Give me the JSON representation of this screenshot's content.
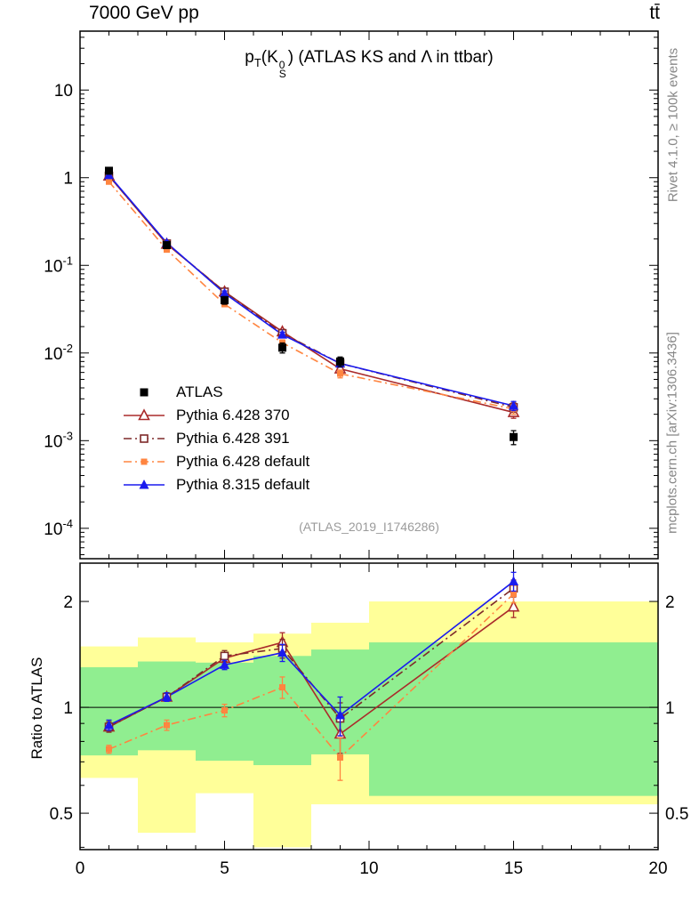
{
  "header": {
    "left": "7000 GeV pp",
    "right": "tt̄"
  },
  "title": {
    "p": "p",
    "sub": "T",
    "k": "(K",
    "sup": "0",
    "ssub": "S",
    "rest": ") (ATLAS KS and Λ in ttbar)"
  },
  "side_labels": {
    "rivet": "Rivet 4.1.0, ≥ 100k events",
    "mcplots": "mcplots.cern.ch [arXiv:1306.3436]"
  },
  "watermark": "(ATLAS_2019_I1746286)",
  "colors": {
    "yellow_band": "#ffff99",
    "green_band": "#90ee90",
    "atlas": "#000000",
    "p370": "#aa2b2b",
    "p391": "#7e2a2a",
    "p6def": "#ff8540",
    "p8def": "#1a1aee"
  },
  "chart_data": {
    "type": "line",
    "title": "pT(K0S) (ATLAS KS and Lambda in ttbar)",
    "x": [
      1,
      3,
      5,
      7,
      9,
      15
    ],
    "x_range": [
      0,
      20
    ],
    "x_ticks": [
      0,
      5,
      10,
      15,
      20
    ],
    "top_panel": {
      "y_scale": "log",
      "y_range": [
        4.5e-05,
        47
      ],
      "y_ticks": [
        {
          "value": 10,
          "label": "10"
        },
        {
          "value": 1,
          "label": "1"
        },
        {
          "value": 0.1,
          "label": "10^-1"
        },
        {
          "value": 0.01,
          "label": "10^-2"
        },
        {
          "value": 0.001,
          "label": "10^-3"
        },
        {
          "value": 0.0001,
          "label": "10^-4"
        }
      ],
      "series": [
        {
          "name": "ATLAS",
          "key": "atlas",
          "marker": "square-filled",
          "line": "none",
          "values": [
            1.2,
            0.17,
            0.04,
            0.0115,
            0.008,
            0.0011
          ],
          "errors": [
            0.08,
            0.012,
            0.004,
            0.0015,
            0.001,
            0.0002
          ]
        },
        {
          "name": "Pythia 6.428 370",
          "key": "p370",
          "marker": "triangle-open",
          "line": "solid",
          "values": [
            1.05,
            0.175,
            0.05,
            0.0175,
            0.0066,
            0.0021
          ],
          "errors": [
            0.04,
            0.008,
            0.003,
            0.0012,
            0.0007,
            0.0003
          ]
        },
        {
          "name": "Pythia 6.428 391",
          "key": "p391",
          "marker": "square-open",
          "line": "dashdot",
          "values": [
            1.05,
            0.177,
            0.05,
            0.0168,
            0.0076,
            0.0024
          ],
          "errors": [
            0.04,
            0.008,
            0.003,
            0.0012,
            0.0007,
            0.0003
          ]
        },
        {
          "name": "Pythia 6.428 default",
          "key": "p6def",
          "marker": "square-filled-small",
          "line": "dashdot",
          "values": [
            0.9,
            0.151,
            0.036,
            0.0131,
            0.0058,
            0.0023
          ],
          "errors": [
            0.04,
            0.007,
            0.002,
            0.001,
            0.0006,
            0.0003
          ]
        },
        {
          "name": "Pythia 8.315 default",
          "key": "p8def",
          "marker": "triangle-filled",
          "line": "solid",
          "values": [
            1.07,
            0.181,
            0.048,
            0.0162,
            0.0076,
            0.0025
          ],
          "errors": [
            0.04,
            0.008,
            0.003,
            0.0011,
            0.0007,
            0.0003
          ]
        }
      ]
    },
    "ratio_panel": {
      "y_label": "Ratio to ATLAS",
      "y_scale": "log",
      "y_range": [
        0.394,
        2.57
      ],
      "y_ticks": [
        {
          "value": 0.5,
          "label": "0.5"
        },
        {
          "value": 1,
          "label": "1"
        },
        {
          "value": 2,
          "label": "2"
        }
      ],
      "reference_line": 1,
      "band_bins": [
        [
          0,
          2
        ],
        [
          2,
          4
        ],
        [
          4,
          6
        ],
        [
          6,
          8
        ],
        [
          8,
          10
        ],
        [
          10,
          20
        ]
      ],
      "yellow_band": [
        [
          0.63,
          1.49
        ],
        [
          0.44,
          1.58
        ],
        [
          0.57,
          1.53
        ],
        [
          0.4,
          1.62
        ],
        [
          0.53,
          1.74
        ],
        [
          0.53,
          2.0
        ]
      ],
      "green_band": [
        [
          0.73,
          1.3
        ],
        [
          0.755,
          1.35
        ],
        [
          0.705,
          1.34
        ],
        [
          0.685,
          1.4
        ],
        [
          0.735,
          1.46
        ],
        [
          0.56,
          1.53
        ]
      ],
      "series": [
        {
          "name": "Pythia 6.428 370",
          "key": "p370",
          "values": [
            0.88,
            1.07,
            1.38,
            1.53,
            0.84,
            1.93
          ],
          "errors": [
            0.03,
            0.03,
            0.05,
            0.1,
            0.1,
            0.13
          ]
        },
        {
          "name": "Pythia 6.428 391",
          "key": "p391",
          "values": [
            0.88,
            1.07,
            1.4,
            1.47,
            0.93,
            2.18
          ],
          "errors": [
            0.03,
            0.03,
            0.05,
            0.09,
            0.1,
            0.12
          ]
        },
        {
          "name": "Pythia 6.428 default",
          "key": "p6def",
          "values": [
            0.76,
            0.89,
            0.98,
            1.14,
            0.72,
            2.1
          ],
          "errors": [
            0.02,
            0.03,
            0.04,
            0.08,
            0.1,
            0.12
          ]
        },
        {
          "name": "Pythia 8.315 default",
          "key": "p8def",
          "values": [
            0.89,
            1.07,
            1.32,
            1.43,
            0.95,
            2.28
          ],
          "errors": [
            0.03,
            0.03,
            0.04,
            0.08,
            0.12,
            0.14
          ]
        }
      ]
    }
  }
}
